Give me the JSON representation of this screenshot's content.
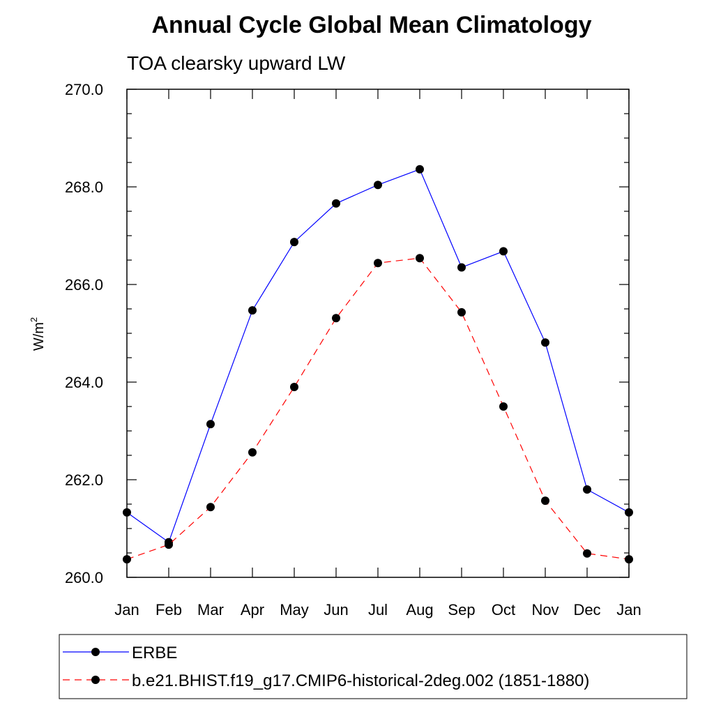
{
  "chart_data": {
    "type": "line",
    "title": "Annual Cycle Global Mean Climatology",
    "subtitle": "TOA clearsky upward LW",
    "ylabel": "W/m",
    "ylabel_superscript": "2",
    "xlabel": "",
    "categories": [
      "Jan",
      "Feb",
      "Mar",
      "Apr",
      "May",
      "Jun",
      "Jul",
      "Aug",
      "Sep",
      "Oct",
      "Nov",
      "Dec",
      "Jan"
    ],
    "ylim": [
      260.0,
      270.0
    ],
    "yticks": [
      "260.0",
      "262.0",
      "264.0",
      "266.0",
      "268.0",
      "270.0"
    ],
    "grid": false,
    "legend_position": "bottom",
    "series": [
      {
        "name": "ERBE",
        "color": "#0000ff",
        "line_style": "solid",
        "values": [
          261.33,
          260.72,
          263.14,
          265.47,
          266.87,
          267.66,
          268.04,
          268.36,
          266.35,
          266.68,
          264.81,
          261.8,
          261.33
        ]
      },
      {
        "name": "b.e21.BHIST.f19_g17.CMIP6-historical-2deg.002 (1851-1880)",
        "color": "#ff0000",
        "line_style": "dashed",
        "values": [
          260.37,
          260.67,
          261.44,
          262.56,
          263.9,
          265.31,
          266.44,
          266.54,
          265.43,
          263.5,
          261.57,
          260.49,
          260.37
        ]
      }
    ]
  }
}
